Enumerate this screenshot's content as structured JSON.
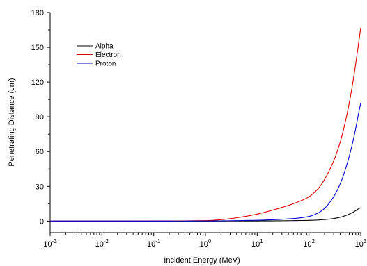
{
  "chart_data": {
    "type": "line",
    "title": "",
    "xlabel": "Incident Energy (MeV)",
    "ylabel": "Penetrating Distance (cm)",
    "x_scale": "log",
    "xlim": [
      0.001,
      1000
    ],
    "ylim": [
      -10,
      180
    ],
    "x_ticks": [
      {
        "base": "10",
        "exp": "-3",
        "value": 0.001
      },
      {
        "base": "10",
        "exp": "-2",
        "value": 0.01
      },
      {
        "base": "10",
        "exp": "-1",
        "value": 0.1
      },
      {
        "base": "10",
        "exp": "0",
        "value": 1
      },
      {
        "base": "10",
        "exp": "1",
        "value": 10
      },
      {
        "base": "10",
        "exp": "2",
        "value": 100
      },
      {
        "base": "10",
        "exp": "3",
        "value": 1000
      }
    ],
    "y_ticks": [
      "0",
      "30",
      "60",
      "90",
      "120",
      "150",
      "180"
    ],
    "grid": false,
    "legend_position": "top-left",
    "series": [
      {
        "name": "Alpha",
        "color": "#000000",
        "points": [
          [
            0.001,
            0
          ],
          [
            0.01,
            0
          ],
          [
            0.1,
            0
          ],
          [
            1,
            0.01
          ],
          [
            10,
            0.1
          ],
          [
            100,
            0.6
          ],
          [
            200,
            1.3
          ],
          [
            300,
            2.2
          ],
          [
            400,
            3.3
          ],
          [
            500,
            4.6
          ],
          [
            600,
            6.0
          ],
          [
            700,
            7.5
          ],
          [
            800,
            9.0
          ],
          [
            900,
            10.5
          ],
          [
            1000,
            11.5
          ]
        ]
      },
      {
        "name": "Electron",
        "color": "#dd0000",
        "points": [
          [
            0.001,
            0
          ],
          [
            0.01,
            0.01
          ],
          [
            0.1,
            0.05
          ],
          [
            1,
            0.4
          ],
          [
            2,
            1.2
          ],
          [
            5,
            3.5
          ],
          [
            10,
            6.0
          ],
          [
            20,
            9.5
          ],
          [
            50,
            15.0
          ],
          [
            100,
            21.0
          ],
          [
            150,
            28.0
          ],
          [
            200,
            36.0
          ],
          [
            300,
            52.0
          ],
          [
            400,
            68.0
          ],
          [
            500,
            85.0
          ],
          [
            600,
            102.0
          ],
          [
            700,
            119.0
          ],
          [
            800,
            136.0
          ],
          [
            900,
            152.0
          ],
          [
            1000,
            167.0
          ]
        ]
      },
      {
        "name": "Proton",
        "color": "#0000cc",
        "points": [
          [
            0.001,
            0
          ],
          [
            0.01,
            0
          ],
          [
            0.1,
            0.01
          ],
          [
            1,
            0.1
          ],
          [
            10,
            0.7
          ],
          [
            50,
            2.2
          ],
          [
            100,
            4.0
          ],
          [
            150,
            7.0
          ],
          [
            200,
            11.0
          ],
          [
            300,
            21.0
          ],
          [
            400,
            32.0
          ],
          [
            500,
            44.0
          ],
          [
            600,
            56.0
          ],
          [
            700,
            68.0
          ],
          [
            800,
            80.0
          ],
          [
            900,
            92.0
          ],
          [
            1000,
            102.0
          ]
        ]
      }
    ]
  }
}
